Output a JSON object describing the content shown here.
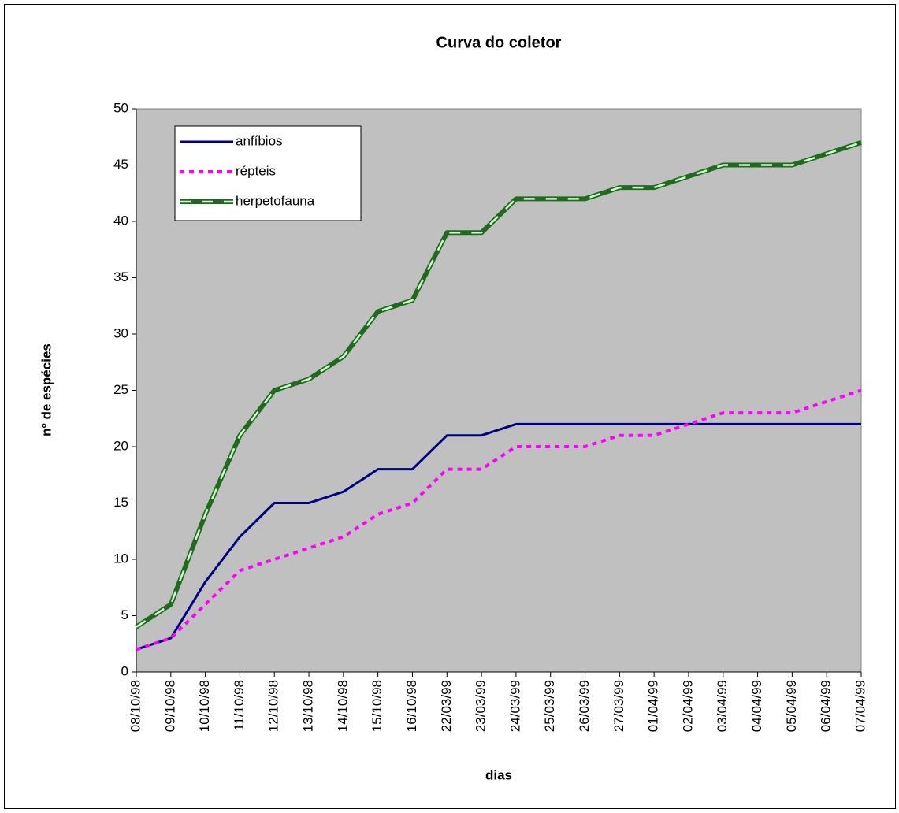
{
  "chart_data": {
    "type": "line",
    "title": "Curva do coletor",
    "x_label": "dias",
    "y_label": "nº de espécies",
    "categories": [
      "08/10/98",
      "09/10/98",
      "10/10/98",
      "11/10/98",
      "12/10/98",
      "13/10/98",
      "14/10/98",
      "15/10/98",
      "16/10/98",
      "22/03/99",
      "23/03/99",
      "24/03/99",
      "25/03/99",
      "26/03/99",
      "27/03/99",
      "01/04/99",
      "02/04/99",
      "03/04/99",
      "04/04/99",
      "05/04/99",
      "06/04/99",
      "07/04/99"
    ],
    "series": [
      {
        "name": "anfíbios",
        "color": "#000080",
        "dash": "solid",
        "values": [
          2,
          3,
          8,
          12,
          15,
          15,
          16,
          18,
          18,
          21,
          21,
          22,
          22,
          22,
          22,
          22,
          22,
          22,
          22,
          22,
          22,
          22
        ]
      },
      {
        "name": "répteis",
        "color": "#ff00ff",
        "dash": "dotted",
        "values": [
          2,
          3,
          6,
          9,
          10,
          11,
          12,
          14,
          15,
          18,
          18,
          20,
          20,
          20,
          21,
          21,
          22,
          23,
          23,
          23,
          24,
          25
        ]
      },
      {
        "name": "herpetofauna",
        "color": "#1e6b1e",
        "dash": "dashed",
        "dash_color": "#ccffcc",
        "values": [
          4,
          6,
          14,
          21,
          25,
          26,
          28,
          32,
          33,
          39,
          39,
          42,
          42,
          42,
          43,
          43,
          44,
          45,
          45,
          45,
          46,
          47
        ]
      }
    ],
    "ylim": [
      0,
      50
    ],
    "yticks": [
      0,
      5,
      10,
      15,
      20,
      25,
      30,
      35,
      40,
      45,
      50
    ],
    "plot_background": "#c0c0c0",
    "legend": "upper left"
  }
}
